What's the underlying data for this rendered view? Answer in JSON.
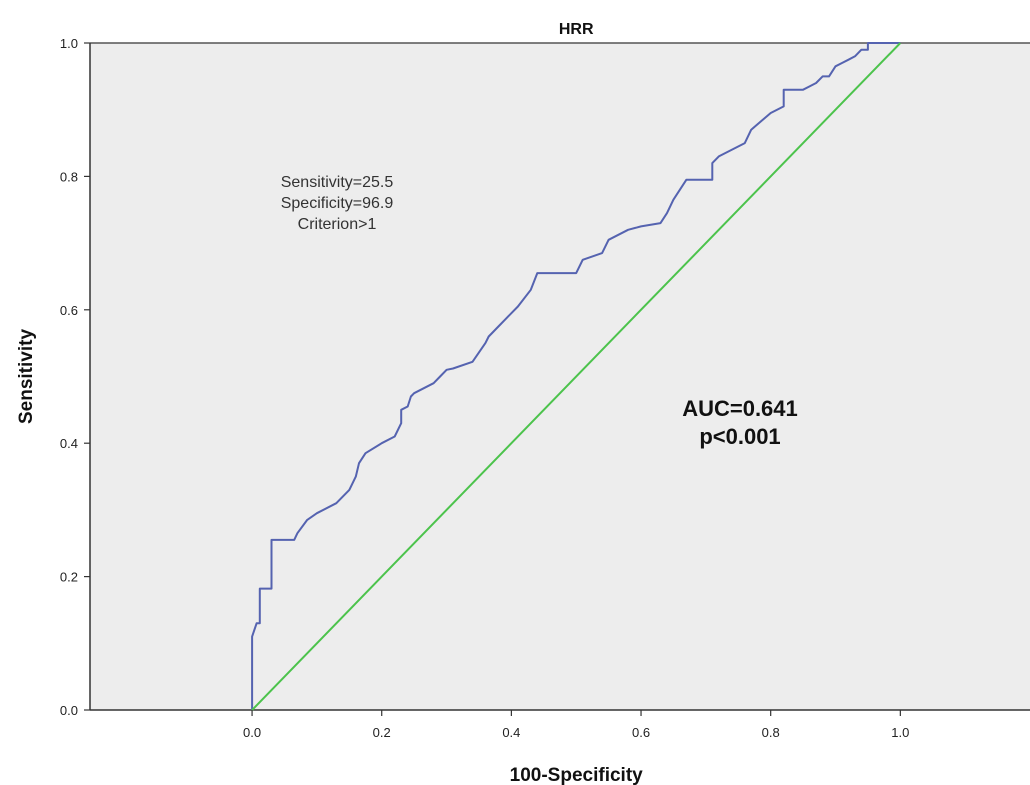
{
  "chart_data": {
    "type": "line",
    "title": "HRR",
    "xlabel": "100-Specificity",
    "ylabel": "Sensitivity",
    "xlim": [
      -0.25,
      1.2
    ],
    "ylim": [
      0,
      1
    ],
    "x_ticks": [
      "0.0",
      "0.2",
      "0.4",
      "0.6",
      "0.8",
      "1.0"
    ],
    "y_ticks": [
      "0.0",
      "0.2",
      "0.4",
      "0.6",
      "0.8",
      "1.0"
    ],
    "grid": false,
    "background": "#ededed",
    "annotations": {
      "criterion_lines": [
        "Sensitivity=25.5",
        "Specificity=96.9",
        "Criterion>1"
      ],
      "auc_lines": [
        "AUC=0.641",
        "p<0.001"
      ]
    },
    "series": [
      {
        "color": "#5563b0",
        "x": [
          0.0,
          0.0,
          0.007,
          0.012,
          0.012,
          0.03,
          0.03,
          0.065,
          0.07,
          0.085,
          0.1,
          0.13,
          0.15,
          0.16,
          0.165,
          0.175,
          0.2,
          0.22,
          0.23,
          0.23,
          0.24,
          0.245,
          0.25,
          0.28,
          0.29,
          0.3,
          0.31,
          0.34,
          0.36,
          0.365,
          0.38,
          0.39,
          0.41,
          0.43,
          0.44,
          0.45,
          0.5,
          0.51,
          0.54,
          0.55,
          0.58,
          0.6,
          0.63,
          0.64,
          0.65,
          0.67,
          0.68,
          0.71,
          0.71,
          0.72,
          0.76,
          0.77,
          0.8,
          0.82,
          0.82,
          0.85,
          0.86,
          0.87,
          0.88,
          0.89,
          0.9,
          0.91,
          0.92,
          0.93,
          0.94,
          0.95,
          0.95,
          1.0
        ],
        "y": [
          0.0,
          0.11,
          0.13,
          0.13,
          0.182,
          0.182,
          0.255,
          0.255,
          0.265,
          0.285,
          0.295,
          0.31,
          0.33,
          0.35,
          0.37,
          0.385,
          0.4,
          0.41,
          0.43,
          0.45,
          0.455,
          0.47,
          0.475,
          0.49,
          0.5,
          0.51,
          0.512,
          0.522,
          0.55,
          0.56,
          0.575,
          0.585,
          0.605,
          0.63,
          0.655,
          0.655,
          0.655,
          0.675,
          0.685,
          0.705,
          0.72,
          0.725,
          0.73,
          0.745,
          0.765,
          0.795,
          0.795,
          0.795,
          0.82,
          0.83,
          0.85,
          0.87,
          0.895,
          0.905,
          0.93,
          0.93,
          0.935,
          0.94,
          0.95,
          0.95,
          0.965,
          0.97,
          0.975,
          0.98,
          0.99,
          0.99,
          1.0,
          1.0
        ]
      },
      {
        "color": "#4cc34c",
        "x": [
          0.0,
          1.0
        ],
        "y": [
          0.0,
          1.0
        ]
      }
    ]
  }
}
